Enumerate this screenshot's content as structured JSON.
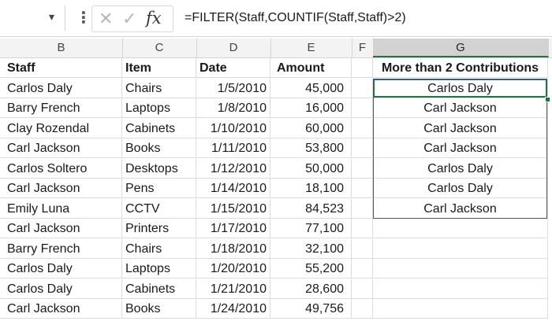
{
  "formula_bar": {
    "cancel_icon": "x-icon",
    "enter_icon": "checkmark-icon",
    "function_icon": "fx-icon",
    "formula": "=FILTER(Staff,COUNTIF(Staff,Staff)>2)"
  },
  "columns": [
    "B",
    "C",
    "D",
    "E",
    "F",
    "G"
  ],
  "headers": {
    "staff": "Staff",
    "item": "Item",
    "date": "Date",
    "amount": "Amount",
    "result": "More than 2 Contributions"
  },
  "rows": [
    {
      "staff": "Carlos Daly",
      "item": "Chairs",
      "date": "1/5/2010",
      "amount": "45,000",
      "result": "Carlos Daly"
    },
    {
      "staff": "Barry French",
      "item": "Laptops",
      "date": "1/8/2010",
      "amount": "16,000",
      "result": "Carl Jackson"
    },
    {
      "staff": "Clay Rozendal",
      "item": "Cabinets",
      "date": "1/10/2010",
      "amount": "60,000",
      "result": "Carl Jackson"
    },
    {
      "staff": "Carl Jackson",
      "item": "Books",
      "date": "1/11/2010",
      "amount": "53,800",
      "result": "Carl Jackson"
    },
    {
      "staff": "Carlos Soltero",
      "item": "Desktops",
      "date": "1/12/2010",
      "amount": "50,000",
      "result": "Carlos Daly"
    },
    {
      "staff": "Carl Jackson",
      "item": "Pens",
      "date": "1/14/2010",
      "amount": "18,100",
      "result": "Carlos Daly"
    },
    {
      "staff": "Emily Luna",
      "item": "CCTV",
      "date": "1/15/2010",
      "amount": "84,523",
      "result": "Carl Jackson"
    },
    {
      "staff": "Carl Jackson",
      "item": "Printers",
      "date": "1/17/2010",
      "amount": "77,100",
      "result": ""
    },
    {
      "staff": "Barry French",
      "item": "Chairs",
      "date": "1/18/2010",
      "amount": "32,100",
      "result": ""
    },
    {
      "staff": "Carlos Daly",
      "item": "Laptops",
      "date": "1/20/2010",
      "amount": "55,200",
      "result": ""
    },
    {
      "staff": "Carlos Daly",
      "item": "Cabinets",
      "date": "1/21/2010",
      "amount": "28,600",
      "result": ""
    },
    {
      "staff": "Carl Jackson",
      "item": "Books",
      "date": "1/24/2010",
      "amount": "49,756",
      "result": ""
    }
  ],
  "selected_column": "G",
  "colors": {
    "selection": "#217346",
    "result_border": "#2f5a9a"
  }
}
